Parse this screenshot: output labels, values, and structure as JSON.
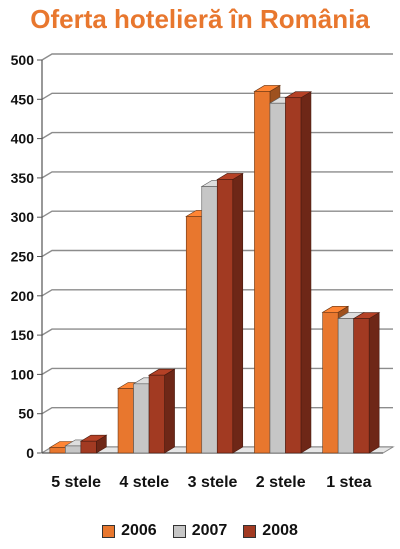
{
  "chart_data": {
    "type": "bar",
    "title": "Oferta hotelieră în România",
    "categories": [
      "5 stele",
      "4 stele",
      "3 stele",
      "2 stele",
      "1 stea"
    ],
    "series": [
      {
        "name": "2006",
        "values": [
          7,
          82,
          301,
          460,
          179
        ],
        "color": "#e8772e"
      },
      {
        "name": "2007",
        "values": [
          9,
          88,
          339,
          445,
          171
        ],
        "color": "#c6c6c6"
      },
      {
        "name": "2008",
        "values": [
          15,
          99,
          348,
          452,
          171
        ],
        "color": "#a23a22"
      }
    ],
    "ylim": [
      0,
      500
    ],
    "yticks": [
      "0",
      "50",
      "100",
      "150",
      "200",
      "250",
      "300",
      "350",
      "400",
      "450",
      "500"
    ],
    "grid": true,
    "legend_position": "bottom"
  }
}
